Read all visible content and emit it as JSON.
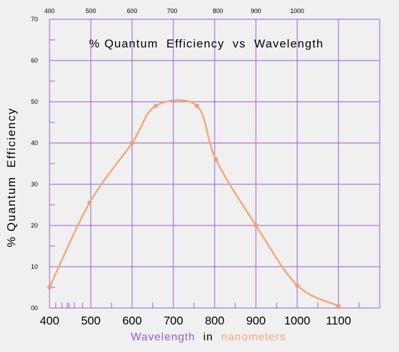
{
  "colors": {
    "grid": "#9b59d0",
    "curve": "#f2a878",
    "marker": "#f29a86",
    "xlabel_word1": "#9b59d0",
    "xlabel_word2": "#000000",
    "xlabel_word3": "#f2a878",
    "background": "#f0f0f0"
  },
  "chart_data": {
    "type": "line",
    "title": "% Quantum  Efficiency  vs  Wavelength",
    "ylabel": "% Quantum  Efficiency",
    "xlabel_parts": [
      "Wavelength",
      "in",
      "nanometers"
    ],
    "ylim": [
      0,
      70
    ],
    "y_ticks": [
      "00",
      "10",
      "20",
      "30",
      "40",
      "50",
      "60",
      "70"
    ],
    "x_ticks_bottom": [
      "400",
      "500",
      "600",
      "700",
      "800",
      "900",
      "1000",
      "1100"
    ],
    "x_ticks_top": [
      "400",
      "500",
      "600",
      "700",
      "800",
      "900",
      "1000"
    ],
    "grid": true,
    "series": [
      {
        "x": [
          400,
          497,
          600,
          657,
          757,
          803,
          900,
          1000,
          1100
        ],
        "y": [
          5,
          25.5,
          40,
          49,
          49,
          36,
          20,
          5.5,
          0.5
        ]
      }
    ]
  }
}
